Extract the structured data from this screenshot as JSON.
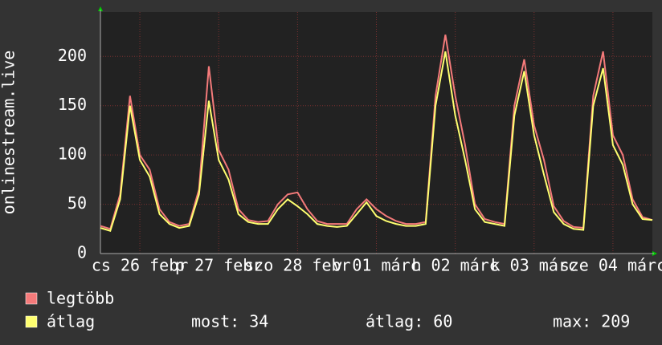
{
  "chart_data": {
    "type": "line",
    "ylabel": "onlinestream.live",
    "xlim": [
      0,
      168
    ],
    "xticks": [
      {
        "value": 12,
        "label": "cs 26 febr"
      },
      {
        "value": 36,
        "label": "p 27 febr"
      },
      {
        "value": 60,
        "label": "szo 28 febr"
      },
      {
        "value": 84,
        "label": "v 01 márc"
      },
      {
        "value": 108,
        "label": "h 02 márc"
      },
      {
        "value": 132,
        "label": "k 03 márc"
      },
      {
        "value": 156,
        "label": "sze 04 márc"
      }
    ],
    "ylim": [
      0,
      245
    ],
    "yticks": [
      0,
      50,
      100,
      150,
      200
    ],
    "grid": true,
    "x": [
      0,
      3,
      6,
      9,
      12,
      15,
      18,
      21,
      24,
      27,
      30,
      33,
      36,
      39,
      42,
      45,
      48,
      51,
      54,
      57,
      60,
      63,
      66,
      69,
      72,
      75,
      78,
      81,
      84,
      87,
      90,
      93,
      96,
      99,
      102,
      105,
      108,
      111,
      114,
      117,
      120,
      123,
      126,
      129,
      132,
      135,
      138,
      141,
      144,
      147,
      150,
      153,
      156,
      159,
      162,
      165,
      168
    ],
    "series": [
      {
        "name": "legtöbb",
        "color": "#f47a7a",
        "values": [
          28,
          25,
          60,
          160,
          100,
          85,
          45,
          32,
          28,
          30,
          65,
          190,
          105,
          85,
          45,
          34,
          32,
          33,
          50,
          60,
          62,
          45,
          33,
          30,
          30,
          30,
          45,
          55,
          45,
          38,
          33,
          30,
          30,
          32,
          160,
          222,
          160,
          110,
          50,
          35,
          32,
          30,
          150,
          197,
          130,
          95,
          48,
          33,
          27,
          26,
          160,
          205,
          120,
          100,
          55,
          37,
          34
        ]
      },
      {
        "name": "átlag",
        "color": "#ffff70",
        "values": [
          26,
          23,
          55,
          150,
          95,
          78,
          40,
          30,
          26,
          28,
          60,
          155,
          95,
          75,
          40,
          32,
          30,
          30,
          45,
          55,
          48,
          40,
          30,
          28,
          27,
          28,
          40,
          52,
          38,
          33,
          30,
          28,
          28,
          30,
          150,
          205,
          140,
          95,
          45,
          32,
          30,
          28,
          140,
          185,
          120,
          80,
          42,
          30,
          25,
          24,
          150,
          188,
          110,
          90,
          50,
          35,
          34
        ]
      }
    ],
    "stats": [
      "most: 34",
      "átlag: 60",
      "max: 209"
    ]
  }
}
